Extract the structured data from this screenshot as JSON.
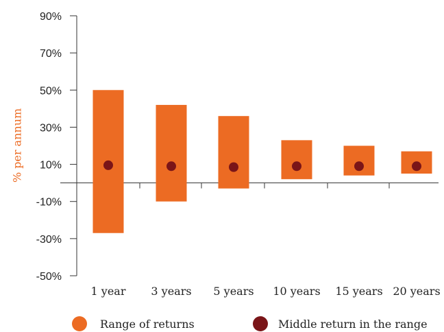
{
  "colors": {
    "range": "#EC6B23",
    "middle": "#7A1518",
    "axis": "#333333",
    "ylabel": "#EC6B23"
  },
  "chart_data": {
    "type": "bar",
    "categories": [
      "1 year",
      "3 years",
      "5 years",
      "10 years",
      "15 years",
      "20 years"
    ],
    "series": [
      {
        "name": "Range of returns",
        "kind": "floating-bar",
        "low": [
          -27,
          -10,
          -3,
          2,
          4,
          5
        ],
        "high": [
          50,
          42,
          36,
          23,
          20,
          17
        ]
      },
      {
        "name": "Middle return in the range",
        "kind": "dot",
        "values": [
          9.5,
          9,
          8.5,
          9,
          9,
          9
        ]
      }
    ],
    "ylabel": "% per annum",
    "ylim": [
      -50,
      90
    ],
    "yticks": [
      -50,
      -30,
      -10,
      10,
      30,
      50,
      70,
      90
    ],
    "ytick_labels": [
      "-50%",
      "-30%",
      "-10%",
      "10%",
      "30%",
      "50%",
      "70%",
      "90%"
    ],
    "baseline": 0,
    "legend_position": "bottom",
    "grid": false
  }
}
